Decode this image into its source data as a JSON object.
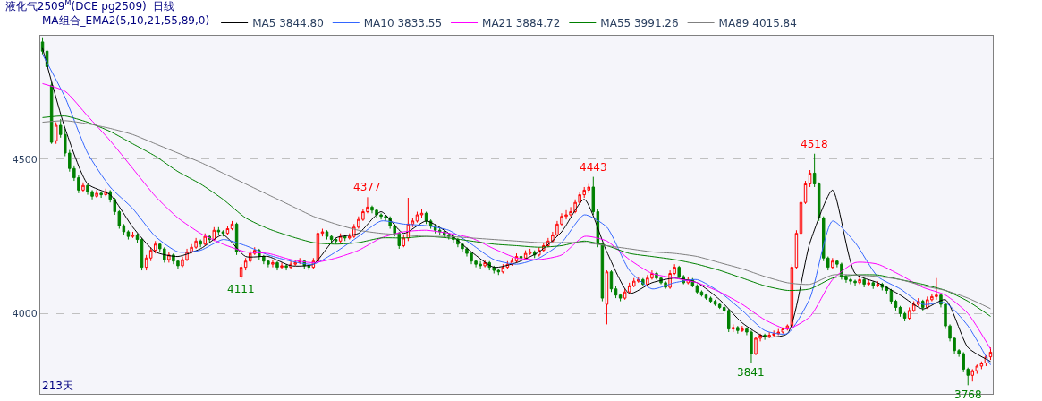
{
  "chart_data": {
    "type": "candlestick",
    "title": "液化气2509$^{M}$(DCE pg2509)",
    "subtitle": "日线",
    "legend_title": "MA组合_EMA2(5,10,21,55,89,0)",
    "categories": [
      null,
      null,
      null,
      null,
      null,
      null,
      null,
      null,
      null,
      null,
      null,
      null,
      null,
      null,
      null,
      null,
      null,
      null,
      null,
      null,
      null,
      null,
      null,
      null,
      null,
      null,
      null,
      null,
      null,
      null,
      null,
      null,
      null,
      null,
      null,
      null,
      null,
      null,
      null,
      null,
      null,
      null,
      null,
      null,
      null,
      null,
      null,
      null,
      null,
      null,
      null,
      null,
      null,
      null,
      null,
      null,
      null,
      null,
      null,
      null,
      null,
      null,
      null,
      null,
      null,
      null,
      null,
      null,
      null,
      null,
      null,
      null,
      null,
      null,
      null,
      null,
      null,
      null,
      null,
      null,
      null,
      null,
      null,
      null,
      null,
      null,
      null,
      null,
      null,
      null,
      null,
      null,
      null,
      null,
      null,
      null,
      null,
      null,
      null,
      null,
      null,
      null,
      null,
      null,
      null,
      null,
      null,
      null,
      null,
      null,
      null,
      null,
      null,
      null,
      null,
      null,
      null,
      null,
      null,
      null,
      null,
      null,
      null,
      null,
      null,
      null,
      null,
      null,
      null,
      null,
      null,
      null,
      null,
      null,
      null,
      null,
      null,
      null,
      null,
      null,
      null,
      null,
      null,
      null,
      null,
      null,
      null,
      null,
      null,
      null,
      null,
      null,
      null,
      null,
      null,
      null,
      null,
      null,
      null,
      null,
      null,
      null,
      null,
      null,
      null,
      null,
      null,
      null,
      null,
      null,
      null,
      null,
      null,
      null,
      null,
      null,
      null,
      null,
      null,
      null,
      null,
      null,
      null,
      null,
      null,
      null,
      null,
      null,
      null,
      null,
      null,
      null,
      null,
      null,
      null,
      null,
      null,
      null,
      null,
      null,
      null,
      null,
      null,
      null,
      null,
      null,
      null,
      null,
      null,
      null,
      null
    ],
    "ohlc": [
      [
        4880,
        4895,
        4840,
        4850
      ],
      [
        4850,
        4855,
        4790,
        4800
      ],
      [
        4740,
        4750,
        4550,
        4555
      ],
      [
        4560,
        4620,
        4550,
        4610
      ],
      [
        4610,
        4630,
        4570,
        4580
      ],
      [
        4580,
        4600,
        4510,
        4520
      ],
      [
        4520,
        4530,
        4460,
        4470
      ],
      [
        4470,
        4480,
        4430,
        4440
      ],
      [
        4440,
        4450,
        4390,
        4400
      ],
      [
        4400,
        4425,
        4395,
        4415
      ],
      [
        4415,
        4420,
        4385,
        4395
      ],
      [
        4395,
        4400,
        4370,
        4380
      ],
      [
        4380,
        4400,
        4375,
        4390
      ],
      [
        4390,
        4395,
        4375,
        4385
      ],
      [
        4385,
        4405,
        4380,
        4395
      ],
      [
        4395,
        4400,
        4360,
        4370
      ],
      [
        4370,
        4375,
        4320,
        4330
      ],
      [
        4330,
        4335,
        4275,
        4285
      ],
      [
        4285,
        4290,
        4255,
        4265
      ],
      [
        4265,
        4270,
        4240,
        4250
      ],
      [
        4250,
        4265,
        4245,
        4255
      ],
      [
        4255,
        4260,
        4230,
        4240
      ],
      [
        4240,
        4245,
        4140,
        4150
      ],
      [
        4150,
        4190,
        4140,
        4180
      ],
      [
        4180,
        4215,
        4170,
        4205
      ],
      [
        4205,
        4235,
        4195,
        4225
      ],
      [
        4225,
        4230,
        4200,
        4210
      ],
      [
        4210,
        4215,
        4165,
        4175
      ],
      [
        4175,
        4200,
        4165,
        4190
      ],
      [
        4190,
        4195,
        4160,
        4170
      ],
      [
        4170,
        4175,
        4145,
        4155
      ],
      [
        4155,
        4185,
        4150,
        4175
      ],
      [
        4175,
        4210,
        4170,
        4200
      ],
      [
        4200,
        4225,
        4195,
        4215
      ],
      [
        4215,
        4245,
        4210,
        4235
      ],
      [
        4235,
        4240,
        4215,
        4225
      ],
      [
        4225,
        4260,
        4220,
        4250
      ],
      [
        4250,
        4255,
        4230,
        4240
      ],
      [
        4240,
        4280,
        4235,
        4270
      ],
      [
        4270,
        4280,
        4255,
        4265
      ],
      [
        4265,
        4270,
        4250,
        4260
      ],
      [
        4260,
        4285,
        4255,
        4275
      ],
      [
        4275,
        4300,
        4270,
        4290
      ],
      [
        4290,
        4295,
        4190,
        4200
      ],
      [
        4120,
        4160,
        4111,
        4150
      ],
      [
        4150,
        4180,
        4140,
        4170
      ],
      [
        4170,
        4205,
        4165,
        4195
      ],
      [
        4195,
        4215,
        4190,
        4205
      ],
      [
        4205,
        4210,
        4175,
        4185
      ],
      [
        4185,
        4190,
        4160,
        4170
      ],
      [
        4170,
        4175,
        4150,
        4160
      ],
      [
        4160,
        4175,
        4150,
        4165
      ],
      [
        4165,
        4170,
        4140,
        4150
      ],
      [
        4150,
        4165,
        4145,
        4155
      ],
      [
        4155,
        4160,
        4140,
        4150
      ],
      [
        4150,
        4170,
        4145,
        4160
      ],
      [
        4160,
        4175,
        4155,
        4165
      ],
      [
        4165,
        4180,
        4160,
        4170
      ],
      [
        4170,
        4175,
        4145,
        4155
      ],
      [
        4155,
        4160,
        4140,
        4150
      ],
      [
        4150,
        4180,
        4145,
        4170
      ],
      [
        4170,
        4270,
        4165,
        4260
      ],
      [
        4260,
        4275,
        4250,
        4265
      ],
      [
        4265,
        4270,
        4240,
        4250
      ],
      [
        4250,
        4255,
        4230,
        4240
      ],
      [
        4240,
        4245,
        4225,
        4235
      ],
      [
        4235,
        4260,
        4230,
        4250
      ],
      [
        4250,
        4255,
        4235,
        4245
      ],
      [
        4245,
        4260,
        4240,
        4250
      ],
      [
        4250,
        4290,
        4245,
        4280
      ],
      [
        4280,
        4315,
        4275,
        4305
      ],
      [
        4305,
        4340,
        4300,
        4330
      ],
      [
        4330,
        4377,
        4325,
        4345
      ],
      [
        4345,
        4350,
        4325,
        4335
      ],
      [
        4335,
        4340,
        4310,
        4320
      ],
      [
        4320,
        4325,
        4305,
        4315
      ],
      [
        4315,
        4320,
        4300,
        4310
      ],
      [
        4310,
        4315,
        4275,
        4285
      ],
      [
        4285,
        4290,
        4250,
        4260
      ],
      [
        4260,
        4265,
        4210,
        4220
      ],
      [
        4220,
        4255,
        4215,
        4245
      ],
      [
        4245,
        4375,
        4235,
        4290
      ],
      [
        4290,
        4310,
        4280,
        4300
      ],
      [
        4300,
        4330,
        4295,
        4320
      ],
      [
        4320,
        4340,
        4310,
        4325
      ],
      [
        4325,
        4330,
        4290,
        4300
      ],
      [
        4300,
        4305,
        4275,
        4285
      ],
      [
        4285,
        4290,
        4260,
        4270
      ],
      [
        4270,
        4280,
        4255,
        4265
      ],
      [
        4265,
        4270,
        4245,
        4255
      ],
      [
        4255,
        4260,
        4240,
        4250
      ],
      [
        4250,
        4255,
        4230,
        4240
      ],
      [
        4240,
        4245,
        4215,
        4225
      ],
      [
        4225,
        4230,
        4200,
        4210
      ],
      [
        4210,
        4215,
        4185,
        4195
      ],
      [
        4195,
        4200,
        4160,
        4170
      ],
      [
        4170,
        4175,
        4150,
        4160
      ],
      [
        4160,
        4170,
        4145,
        4155
      ],
      [
        4155,
        4175,
        4150,
        4165
      ],
      [
        4165,
        4170,
        4140,
        4150
      ],
      [
        4150,
        4155,
        4130,
        4140
      ],
      [
        4140,
        4145,
        4125,
        4135
      ],
      [
        4135,
        4160,
        4130,
        4150
      ],
      [
        4150,
        4170,
        4145,
        4160
      ],
      [
        4160,
        4180,
        4155,
        4170
      ],
      [
        4170,
        4195,
        4165,
        4185
      ],
      [
        4185,
        4190,
        4170,
        4180
      ],
      [
        4180,
        4205,
        4175,
        4195
      ],
      [
        4195,
        4210,
        4190,
        4200
      ],
      [
        4200,
        4205,
        4180,
        4190
      ],
      [
        4190,
        4215,
        4185,
        4205
      ],
      [
        4205,
        4230,
        4200,
        4220
      ],
      [
        4220,
        4245,
        4215,
        4235
      ],
      [
        4235,
        4265,
        4230,
        4255
      ],
      [
        4255,
        4300,
        4250,
        4290
      ],
      [
        4290,
        4325,
        4285,
        4315
      ],
      [
        4315,
        4335,
        4305,
        4320
      ],
      [
        4320,
        4345,
        4315,
        4330
      ],
      [
        4330,
        4370,
        4325,
        4360
      ],
      [
        4360,
        4395,
        4355,
        4385
      ],
      [
        4385,
        4410,
        4375,
        4400
      ],
      [
        4400,
        4420,
        4390,
        4410
      ],
      [
        4410,
        4443,
        4320,
        4330
      ],
      [
        4330,
        4340,
        4215,
        4225
      ],
      [
        4225,
        4230,
        4040,
        4050
      ],
      [
        4030,
        4140,
        3965,
        4135
      ],
      [
        4135,
        4140,
        4070,
        4080
      ],
      [
        4080,
        4090,
        4050,
        4060
      ],
      [
        4060,
        4065,
        4040,
        4050
      ],
      [
        4050,
        4080,
        4045,
        4070
      ],
      [
        4070,
        4100,
        4065,
        4090
      ],
      [
        4090,
        4115,
        4085,
        4105
      ],
      [
        4105,
        4120,
        4100,
        4110
      ],
      [
        4110,
        4115,
        4090,
        4095
      ],
      [
        4095,
        4125,
        4090,
        4115
      ],
      [
        4115,
        4140,
        4110,
        4130
      ],
      [
        4130,
        4135,
        4110,
        4115
      ],
      [
        4115,
        4120,
        4095,
        4100
      ],
      [
        4100,
        4105,
        4080,
        4085
      ],
      [
        4085,
        4140,
        4080,
        4130
      ],
      [
        4130,
        4160,
        4125,
        4150
      ],
      [
        4150,
        4155,
        4115,
        4120
      ],
      [
        4120,
        4125,
        4095,
        4100
      ],
      [
        4100,
        4120,
        4095,
        4110
      ],
      [
        4110,
        4115,
        4085,
        4090
      ],
      [
        4090,
        4095,
        4065,
        4070
      ],
      [
        4070,
        4075,
        4055,
        4060
      ],
      [
        4060,
        4065,
        4045,
        4050
      ],
      [
        4050,
        4055,
        4035,
        4040
      ],
      [
        4040,
        4045,
        4025,
        4030
      ],
      [
        4030,
        4035,
        4015,
        4020
      ],
      [
        4020,
        4025,
        4005,
        4010
      ],
      [
        4010,
        4015,
        3940,
        3950
      ],
      [
        3950,
        3965,
        3940,
        3955
      ],
      [
        3955,
        3960,
        3935,
        3945
      ],
      [
        3945,
        3960,
        3940,
        3950
      ],
      [
        3950,
        3955,
        3930,
        3940
      ],
      [
        3940,
        3945,
        3841,
        3870
      ],
      [
        3870,
        3925,
        3865,
        3920
      ],
      [
        3920,
        3935,
        3910,
        3930
      ],
      [
        3930,
        3935,
        3915,
        3925
      ],
      [
        3925,
        3940,
        3920,
        3930
      ],
      [
        3930,
        3945,
        3925,
        3935
      ],
      [
        3935,
        3950,
        3930,
        3940
      ],
      [
        3940,
        3955,
        3935,
        3950
      ],
      [
        3950,
        3965,
        3945,
        3960
      ],
      [
        3960,
        4160,
        3955,
        4150
      ],
      [
        4150,
        4270,
        4145,
        4260
      ],
      [
        4260,
        4370,
        4255,
        4360
      ],
      [
        4360,
        4430,
        4355,
        4420
      ],
      [
        4420,
        4465,
        4410,
        4455
      ],
      [
        4455,
        4518,
        4410,
        4420
      ],
      [
        4420,
        4425,
        4300,
        4310
      ],
      [
        4310,
        4315,
        4170,
        4180
      ],
      [
        4180,
        4185,
        4140,
        4150
      ],
      [
        4150,
        4180,
        4145,
        4170
      ],
      [
        4170,
        4175,
        4150,
        4160
      ],
      [
        4160,
        4165,
        4110,
        4120
      ],
      [
        4120,
        4125,
        4100,
        4110
      ],
      [
        4110,
        4115,
        4095,
        4105
      ],
      [
        4105,
        4110,
        4090,
        4100
      ],
      [
        4100,
        4120,
        4095,
        4110
      ],
      [
        4110,
        4115,
        4085,
        4095
      ],
      [
        4095,
        4110,
        4090,
        4100
      ],
      [
        4100,
        4105,
        4080,
        4090
      ],
      [
        4090,
        4105,
        4085,
        4095
      ],
      [
        4095,
        4100,
        4075,
        4085
      ],
      [
        4085,
        4090,
        4065,
        4075
      ],
      [
        4075,
        4080,
        4030,
        4040
      ],
      [
        4040,
        4045,
        4010,
        4020
      ],
      [
        4020,
        4025,
        3990,
        4000
      ],
      [
        4000,
        4005,
        3975,
        3985
      ],
      [
        3985,
        4020,
        3980,
        4010
      ],
      [
        4010,
        4040,
        4005,
        4030
      ],
      [
        4030,
        4050,
        4025,
        4040
      ],
      [
        4040,
        4045,
        4010,
        4020
      ],
      [
        4020,
        4055,
        4015,
        4045
      ],
      [
        4045,
        4065,
        4040,
        4055
      ],
      [
        4055,
        4115,
        4045,
        4060
      ],
      [
        4060,
        4065,
        4020,
        4030
      ],
      [
        4030,
        4035,
        3950,
        3960
      ],
      [
        3960,
        3965,
        3910,
        3920
      ],
      [
        3920,
        3925,
        3870,
        3880
      ],
      [
        3880,
        3885,
        3860,
        3870
      ],
      [
        3870,
        3875,
        3810,
        3820
      ],
      [
        3820,
        3825,
        3768,
        3800
      ],
      [
        3800,
        3820,
        3780,
        3815
      ],
      [
        3815,
        3835,
        3805,
        3830
      ],
      [
        3830,
        3845,
        3820,
        3840
      ],
      [
        3840,
        3865,
        3830,
        3860
      ],
      [
        3860,
        3890,
        3850,
        3875
      ]
    ],
    "series": [
      {
        "type": "line",
        "name": "MA5 3844.80",
        "color": "#000000",
        "values": [
          4860,
          null,
          null,
          null,
          null,
          4600,
          null,
          null,
          null,
          null,
          4420,
          null,
          null,
          null,
          null,
          4385,
          null,
          null,
          null,
          null,
          4280,
          null,
          null,
          null,
          null,
          4200,
          null,
          null,
          null,
          null,
          4185,
          null,
          null,
          null,
          null,
          4210,
          null,
          null,
          null,
          null,
          4255,
          null,
          null,
          null,
          null,
          4185,
          null,
          null,
          null,
          null,
          4185,
          null,
          null,
          null,
          null,
          4155,
          null,
          null,
          null,
          null,
          4160,
          null,
          null,
          null,
          null,
          4245,
          null,
          null,
          null,
          null,
          4260,
          null,
          null,
          null,
          null,
          4330,
          null,
          null,
          null,
          null,
          4260,
          null,
          null,
          null,
          null,
          4300,
          null,
          null,
          null,
          null,
          4260,
          null,
          null,
          null,
          null,
          4200,
          null,
          null,
          null,
          null,
          4150,
          null,
          null,
          null,
          null,
          4165,
          null,
          null,
          null,
          null,
          4200,
          null,
          null,
          null,
          null,
          4265,
          null,
          null,
          null,
          null,
          4370,
          null,
          null,
          null,
          null,
          4200,
          null,
          null,
          null,
          null,
          4065,
          null,
          null,
          null,
          null,
          4100,
          null,
          null,
          null,
          null,
          4115,
          null,
          null,
          null,
          null,
          4100,
          null,
          null,
          null,
          null,
          4045,
          null,
          null,
          null,
          null,
          3970,
          null,
          null,
          null,
          null,
          3925,
          null,
          null,
          null,
          null,
          3935,
          null,
          null,
          null,
          null,
          4230,
          null,
          null,
          null,
          null,
          4400,
          null,
          null,
          null,
          null,
          4130,
          null,
          null,
          null,
          null,
          4100,
          null,
          null,
          null,
          null,
          4060,
          null,
          null,
          null,
          null,
          4015,
          null,
          null,
          null,
          null,
          4045,
          null,
          null,
          null,
          null,
          3890,
          null,
          null,
          null,
          null,
          3845
        ]
      },
      {
        "type": "line",
        "name": "MA10 3833.55",
        "color": "#3366ff",
        "values": [
          4840,
          null,
          null,
          null,
          null,
          4700,
          null,
          null,
          null,
          null,
          4520,
          null,
          null,
          null,
          null,
          4410,
          null,
          null,
          null,
          null,
          4340,
          null,
          null,
          null,
          null,
          4250,
          null,
          null,
          null,
          null,
          4200,
          null,
          null,
          null,
          null,
          4205,
          null,
          null,
          null,
          null,
          4240,
          null,
          null,
          null,
          null,
          4220,
          null,
          null,
          null,
          null,
          4190,
          null,
          null,
          null,
          null,
          4170,
          null,
          null,
          null,
          null,
          4160,
          null,
          null,
          null,
          null,
          4200,
          null,
          null,
          null,
          null,
          4250,
          null,
          null,
          null,
          null,
          4300,
          null,
          null,
          null,
          null,
          4290,
          null,
          null,
          null,
          null,
          4285,
          null,
          null,
          null,
          null,
          4270,
          null,
          null,
          null,
          null,
          4225,
          null,
          null,
          null,
          null,
          4175,
          null,
          null,
          null,
          null,
          4160,
          null,
          null,
          null,
          null,
          4180,
          null,
          null,
          null,
          null,
          4230,
          null,
          null,
          null,
          null,
          4320,
          null,
          null,
          null,
          null,
          4280,
          null,
          null,
          null,
          null,
          4140,
          null,
          null,
          null,
          null,
          4080,
          null,
          null,
          null,
          null,
          4100,
          null,
          null,
          null,
          null,
          4110,
          null,
          null,
          null,
          null,
          4070,
          null,
          null,
          null,
          null,
          4010,
          null,
          null,
          null,
          null,
          3945,
          null,
          null,
          null,
          null,
          3935,
          null,
          null,
          null,
          null,
          4050,
          null,
          null,
          null,
          null,
          4300,
          null,
          null,
          null,
          null,
          4230,
          null,
          null,
          null,
          null,
          4120,
          null,
          null,
          null,
          null,
          4080,
          null,
          null,
          null,
          null,
          4030,
          null,
          null,
          null,
          null,
          4035,
          null,
          null,
          null,
          null,
          3960,
          null,
          null,
          null,
          null,
          3834
        ]
      },
      {
        "type": "line",
        "name": "MA21 3884.72",
        "color": "#ff00ff",
        "values": [
          4745,
          null,
          null,
          null,
          null,
          4720,
          null,
          null,
          null,
          null,
          4640,
          null,
          null,
          null,
          null,
          4560,
          null,
          null,
          null,
          null,
          4470,
          null,
          null,
          null,
          null,
          4380,
          null,
          null,
          null,
          null,
          4310,
          null,
          null,
          null,
          null,
          4260,
          null,
          null,
          null,
          null,
          4225,
          null,
          null,
          null,
          null,
          4200,
          null,
          null,
          null,
          null,
          4195,
          null,
          null,
          null,
          null,
          4175,
          null,
          null,
          null,
          null,
          4165,
          null,
          null,
          null,
          null,
          4180,
          null,
          null,
          null,
          null,
          4205,
          null,
          null,
          null,
          null,
          4245,
          null,
          null,
          null,
          null,
          4265,
          null,
          null,
          null,
          null,
          4270,
          null,
          null,
          null,
          null,
          4260,
          null,
          null,
          null,
          null,
          4245,
          null,
          null,
          null,
          null,
          4210,
          null,
          null,
          null,
          null,
          4180,
          null,
          null,
          null,
          null,
          4175,
          null,
          null,
          null,
          null,
          4190,
          null,
          null,
          null,
          null,
          4250,
          null,
          null,
          null,
          null,
          4235,
          null,
          null,
          null,
          null,
          4175,
          null,
          null,
          null,
          null,
          4130,
          null,
          null,
          null,
          null,
          4115,
          null,
          null,
          null,
          null,
          4100,
          null,
          null,
          null,
          null,
          4070,
          null,
          null,
          null,
          null,
          4030,
          null,
          null,
          null,
          null,
          3980,
          null,
          null,
          null,
          null,
          3950,
          null,
          null,
          null,
          null,
          3990,
          null,
          null,
          null,
          null,
          4110,
          null,
          null,
          null,
          null,
          4165,
          null,
          null,
          null,
          null,
          4160,
          null,
          null,
          null,
          null,
          4125,
          null,
          null,
          null,
          null,
          4085,
          null,
          null,
          null,
          null,
          4060,
          null,
          null,
          null,
          null,
          4000,
          null,
          null,
          null,
          null,
          3885
        ]
      },
      {
        "type": "line",
        "name": "MA55 3991.26",
        "color": "#008000",
        "values": [
          4635,
          null,
          null,
          null,
          null,
          4640,
          null,
          null,
          null,
          null,
          4620,
          null,
          null,
          null,
          null,
          4590,
          null,
          null,
          null,
          null,
          4550,
          null,
          null,
          null,
          null,
          4510,
          null,
          null,
          null,
          null,
          4460,
          null,
          null,
          null,
          null,
          4420,
          null,
          null,
          null,
          null,
          4370,
          null,
          null,
          null,
          null,
          4310,
          null,
          null,
          null,
          null,
          4275,
          null,
          null,
          null,
          null,
          4250,
          null,
          null,
          null,
          null,
          4230,
          null,
          null,
          null,
          null,
          4225,
          null,
          null,
          null,
          null,
          4230,
          null,
          null,
          null,
          null,
          4245,
          null,
          null,
          null,
          null,
          4245,
          null,
          null,
          null,
          null,
          4250,
          null,
          null,
          null,
          null,
          4245,
          null,
          null,
          null,
          null,
          4235,
          null,
          null,
          null,
          null,
          4225,
          null,
          null,
          null,
          null,
          4220,
          null,
          null,
          null,
          null,
          4215,
          null,
          null,
          null,
          null,
          4220,
          null,
          null,
          null,
          null,
          4235,
          null,
          null,
          null,
          null,
          4220,
          null,
          null,
          null,
          null,
          4195,
          null,
          null,
          null,
          null,
          4185,
          null,
          null,
          null,
          null,
          4175,
          null,
          null,
          null,
          null,
          4160,
          null,
          null,
          null,
          null,
          4140,
          null,
          null,
          null,
          null,
          4115,
          null,
          null,
          null,
          null,
          4090,
          null,
          null,
          null,
          null,
          4075,
          null,
          null,
          null,
          null,
          4080,
          null,
          null,
          null,
          null,
          4115,
          null,
          null,
          null,
          null,
          4125,
          null,
          null,
          null,
          null,
          4125,
          null,
          null,
          null,
          null,
          4110,
          null,
          null,
          null,
          null,
          4095,
          null,
          null,
          null,
          null,
          4075,
          null,
          null,
          null,
          null,
          4040,
          null,
          null,
          null,
          null,
          3991
        ]
      },
      {
        "type": "line",
        "name": "MA89 4015.84",
        "color": "#808080",
        "values": [
          4620,
          null,
          null,
          null,
          null,
          4625,
          null,
          null,
          null,
          null,
          4615,
          null,
          null,
          null,
          null,
          4600,
          null,
          null,
          null,
          null,
          4580,
          null,
          null,
          null,
          null,
          4550,
          null,
          null,
          null,
          null,
          4520,
          null,
          null,
          null,
          null,
          4490,
          null,
          null,
          null,
          null,
          4455,
          null,
          null,
          null,
          null,
          4420,
          null,
          null,
          null,
          null,
          4385,
          null,
          null,
          null,
          null,
          4350,
          null,
          null,
          null,
          null,
          4315,
          null,
          null,
          null,
          null,
          4290,
          null,
          null,
          null,
          null,
          4270,
          null,
          null,
          null,
          null,
          4260,
          null,
          null,
          null,
          null,
          4255,
          null,
          null,
          null,
          null,
          4250,
          null,
          null,
          null,
          null,
          4250,
          null,
          null,
          null,
          null,
          4245,
          null,
          null,
          null,
          null,
          4240,
          null,
          null,
          null,
          null,
          4235,
          null,
          null,
          null,
          null,
          4230,
          null,
          null,
          null,
          null,
          4230,
          null,
          null,
          null,
          null,
          4230,
          null,
          null,
          null,
          null,
          4220,
          null,
          null,
          null,
          null,
          4210,
          null,
          null,
          null,
          null,
          4200,
          null,
          null,
          null,
          null,
          4195,
          null,
          null,
          null,
          null,
          4185,
          null,
          null,
          null,
          null,
          4165,
          null,
          null,
          null,
          null,
          4145,
          null,
          null,
          null,
          null,
          4120,
          null,
          null,
          null,
          null,
          4100,
          null,
          null,
          null,
          null,
          4095,
          null,
          null,
          null,
          null,
          4125,
          null,
          null,
          null,
          null,
          4125,
          null,
          null,
          null,
          null,
          4120,
          null,
          null,
          null,
          null,
          4110,
          null,
          null,
          null,
          null,
          4090,
          null,
          null,
          null,
          null,
          4075,
          null,
          null,
          null,
          null,
          4050,
          null,
          null,
          null,
          null,
          4016
        ]
      }
    ],
    "ylim": [
      3740,
      4900
    ],
    "yticks": [
      4000,
      4500
    ],
    "grid": "y",
    "tick_labels": "y",
    "legend": "top left",
    "annotations": [
      "4377",
      "4111",
      "4443",
      "4518",
      "3841",
      "3768",
      "213天"
    ]
  }
}
